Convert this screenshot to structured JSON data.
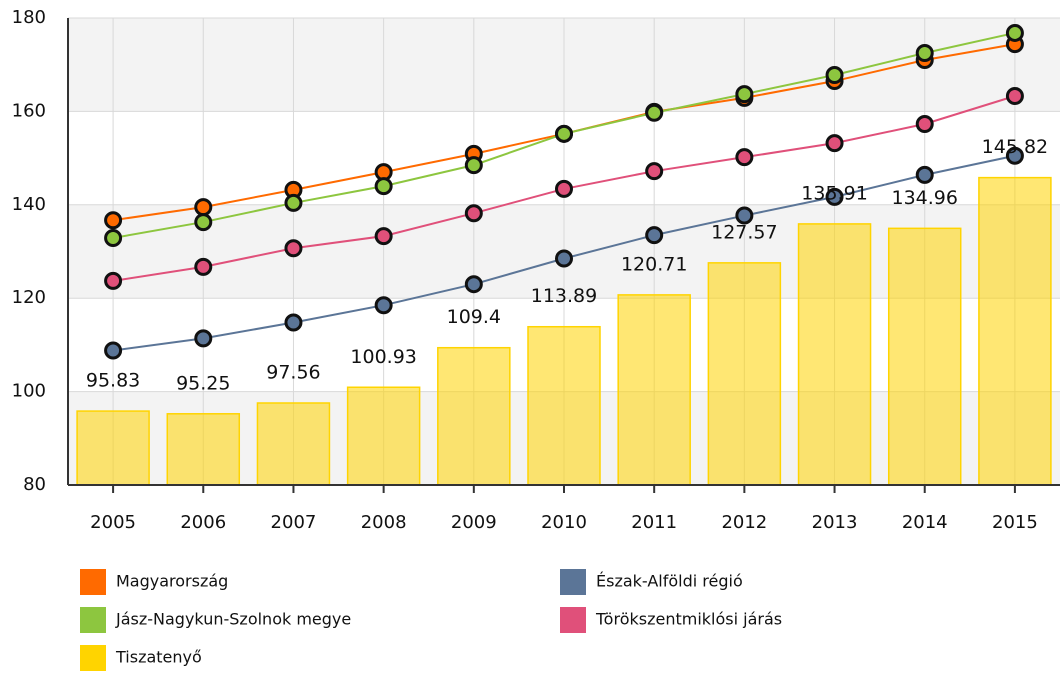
{
  "chart_data": {
    "type": "bar",
    "categories": [
      "2005",
      "2006",
      "2007",
      "2008",
      "2009",
      "2010",
      "2011",
      "2012",
      "2013",
      "2014",
      "2015"
    ],
    "ylim": [
      80,
      180
    ],
    "yticks": [
      80,
      100,
      120,
      140,
      160,
      180
    ],
    "grid": true,
    "series": [
      {
        "name": "Magyarország",
        "type": "line",
        "color": "#ff6a00",
        "values": [
          136.7,
          139.5,
          143.2,
          147,
          150.9,
          155.2,
          159.9,
          162.9,
          166.5,
          171,
          174.4
        ]
      },
      {
        "name": "Észak-Alföldi régió",
        "type": "line",
        "color": "#5b7597",
        "values": [
          108.8,
          111.4,
          114.8,
          118.5,
          123,
          128.5,
          133.5,
          137.7,
          141.7,
          146.4,
          150.5
        ]
      },
      {
        "name": "Jász-Nagykun-Szolnok megye",
        "type": "line",
        "color": "#8dc63f",
        "values": [
          132.9,
          136.3,
          140.4,
          144,
          148.5,
          155.2,
          159.7,
          163.7,
          167.8,
          172.5,
          176.8
        ]
      },
      {
        "name": "Törökszentmiklósi járás",
        "type": "line",
        "color": "#e0507a",
        "values": [
          123.7,
          126.7,
          130.7,
          133.3,
          138.2,
          143.4,
          147.2,
          150.2,
          153.2,
          157.3,
          163.3
        ]
      },
      {
        "name": "Tiszatenyő",
        "type": "bar",
        "color": "#ffd400",
        "values": [
          95.83,
          95.25,
          97.56,
          100.93,
          109.4,
          113.89,
          120.71,
          127.57,
          135.91,
          134.96,
          145.82
        ]
      }
    ]
  }
}
